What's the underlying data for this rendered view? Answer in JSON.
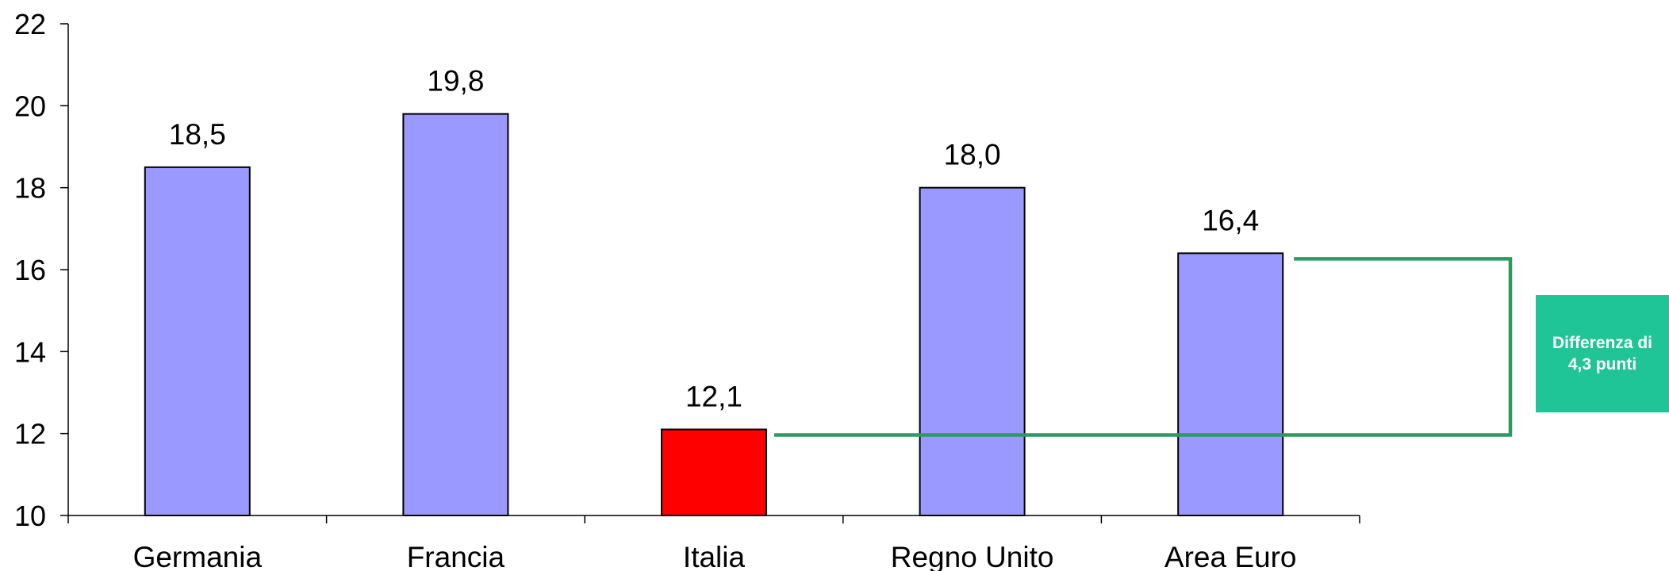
{
  "chart_data": {
    "type": "bar",
    "categories": [
      "Germania",
      "Francia",
      "Italia",
      "Regno Unito",
      "Area Euro"
    ],
    "values": [
      18.5,
      19.8,
      12.1,
      18.0,
      16.4
    ],
    "value_labels": [
      "18,5",
      "19,8",
      "12,1",
      "18,0",
      "16,4"
    ],
    "colors": [
      "#9999ff",
      "#9999ff",
      "#ff0000",
      "#9999ff",
      "#9999ff"
    ],
    "ylim": [
      10,
      22
    ],
    "yticks": [
      10,
      12,
      14,
      16,
      18,
      20,
      22
    ],
    "title": "",
    "xlabel": "",
    "ylabel": "",
    "grid": false,
    "annotation": {
      "text": "Differenza di 4,3 punti",
      "from_value": 12.1,
      "to_value": 16.4,
      "color": "#2e9a63",
      "box_color": "#1fc597"
    }
  }
}
